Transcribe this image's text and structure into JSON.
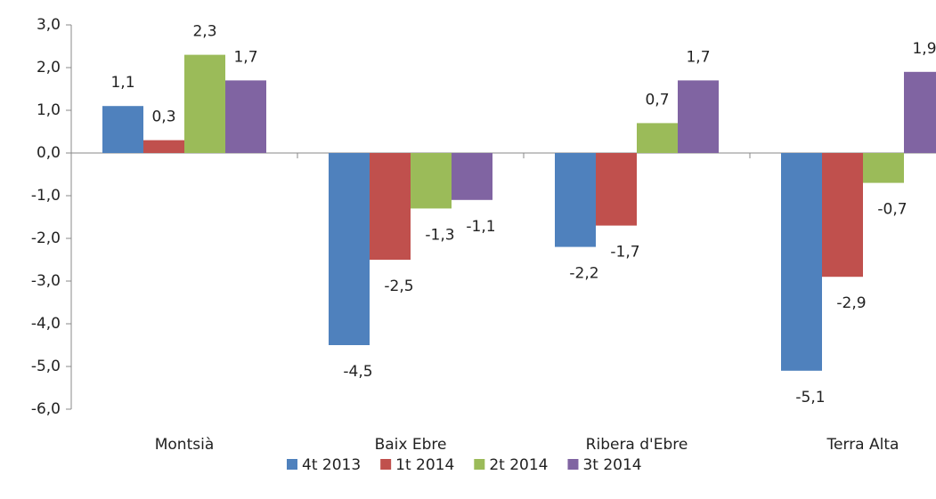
{
  "chart_data": {
    "type": "bar",
    "categories": [
      "Montsià",
      "Baix Ebre",
      "Ribera d'Ebre",
      "Terra Alta"
    ],
    "series": [
      {
        "name": "4t 2013",
        "color": "#4f81bd",
        "values": [
          1.1,
          -4.5,
          -2.2,
          -5.1
        ],
        "value_labels": [
          "1,1",
          "-4,5",
          "-2,2",
          "-5,1"
        ]
      },
      {
        "name": "1t 2014",
        "color": "#c0504d",
        "values": [
          0.3,
          -2.5,
          -1.7,
          -2.9
        ],
        "value_labels": [
          "0,3",
          "-2,5",
          "-1,7",
          "-2,9"
        ]
      },
      {
        "name": "2t 2014",
        "color": "#9bbb59",
        "values": [
          2.3,
          -1.3,
          0.7,
          -0.7
        ],
        "value_labels": [
          "2,3",
          "-1,3",
          "0,7",
          "-0,7"
        ]
      },
      {
        "name": "3t 2014",
        "color": "#8064a2",
        "values": [
          1.7,
          -1.1,
          1.7,
          1.9
        ],
        "value_labels": [
          "1,7",
          "-1,1",
          "1,7",
          "1,9"
        ]
      }
    ],
    "ylim": [
      -6,
      3
    ],
    "yticks": [
      {
        "value": -6,
        "label": "-6,0"
      },
      {
        "value": -5,
        "label": "-5,0"
      },
      {
        "value": -4,
        "label": "-4,0"
      },
      {
        "value": -3,
        "label": "-3,0"
      },
      {
        "value": -2,
        "label": "-2,0"
      },
      {
        "value": -1,
        "label": "-1,0"
      },
      {
        "value": 0,
        "label": "0,0"
      },
      {
        "value": 1,
        "label": "1,0"
      },
      {
        "value": 2,
        "label": "2,0"
      },
      {
        "value": 3,
        "label": "3,0"
      }
    ],
    "legend": "bottom"
  }
}
